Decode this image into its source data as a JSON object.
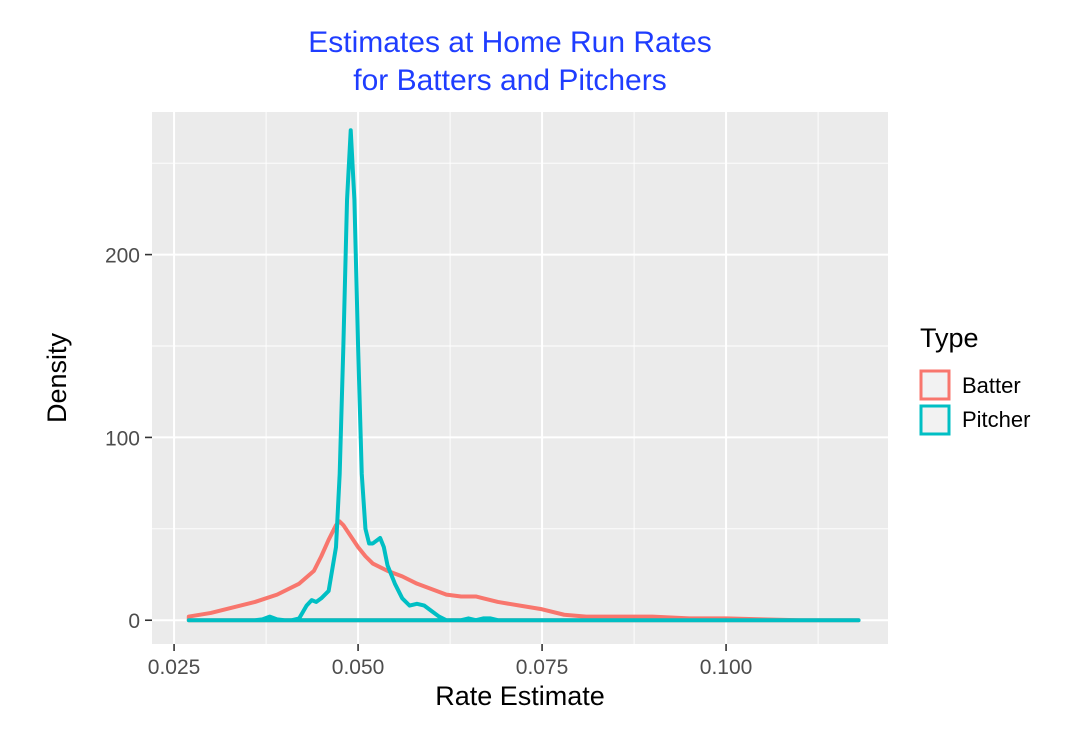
{
  "chart_data": {
    "type": "line",
    "title_lines": [
      "Estimates at Home Run Rates",
      "for Batters and Pitchers"
    ],
    "xlabel": "Rate Estimate",
    "ylabel": "Density",
    "xlim": [
      0.022,
      0.122
    ],
    "ylim": [
      -13,
      278
    ],
    "x_ticks": [
      0.025,
      0.05,
      0.075,
      0.1
    ],
    "x_tick_labels": [
      "0.025",
      "0.050",
      "0.075",
      "0.100"
    ],
    "y_ticks": [
      0,
      100,
      200
    ],
    "y_tick_labels": [
      "0",
      "100",
      "200"
    ],
    "grid": true,
    "legend": {
      "title": "Type",
      "position": "right",
      "entries": [
        "Batter",
        "Pitcher"
      ]
    },
    "series": [
      {
        "name": "Batter",
        "color": "#f8766d",
        "points": [
          [
            0.027,
            2
          ],
          [
            0.03,
            4
          ],
          [
            0.033,
            7
          ],
          [
            0.036,
            10
          ],
          [
            0.039,
            14
          ],
          [
            0.042,
            20
          ],
          [
            0.044,
            27
          ],
          [
            0.045,
            35
          ],
          [
            0.046,
            44
          ],
          [
            0.047,
            52
          ],
          [
            0.0475,
            54
          ],
          [
            0.048,
            52
          ],
          [
            0.049,
            46
          ],
          [
            0.05,
            40
          ],
          [
            0.051,
            35
          ],
          [
            0.052,
            31
          ],
          [
            0.054,
            27
          ],
          [
            0.056,
            24
          ],
          [
            0.058,
            20
          ],
          [
            0.06,
            17
          ],
          [
            0.062,
            14
          ],
          [
            0.064,
            13
          ],
          [
            0.066,
            13
          ],
          [
            0.067,
            12
          ],
          [
            0.069,
            10
          ],
          [
            0.072,
            8
          ],
          [
            0.075,
            6
          ],
          [
            0.078,
            3
          ],
          [
            0.081,
            2
          ],
          [
            0.085,
            2
          ],
          [
            0.088,
            2
          ],
          [
            0.09,
            2
          ],
          [
            0.095,
            1
          ],
          [
            0.1,
            1
          ],
          [
            0.105,
            0.5
          ],
          [
            0.11,
            0
          ],
          [
            0.118,
            0
          ]
        ]
      },
      {
        "name": "Pitcher",
        "color": "#00bfc4",
        "points": [
          [
            0.027,
            0
          ],
          [
            0.036,
            0
          ],
          [
            0.037,
            0.5
          ],
          [
            0.038,
            2
          ],
          [
            0.039,
            0.5
          ],
          [
            0.04,
            0
          ],
          [
            0.041,
            0
          ],
          [
            0.042,
            1
          ],
          [
            0.043,
            8
          ],
          [
            0.0437,
            11
          ],
          [
            0.0443,
            10
          ],
          [
            0.045,
            12
          ],
          [
            0.046,
            16
          ],
          [
            0.047,
            40
          ],
          [
            0.0475,
            80
          ],
          [
            0.048,
            150
          ],
          [
            0.0485,
            230
          ],
          [
            0.049,
            268
          ],
          [
            0.0495,
            230
          ],
          [
            0.05,
            150
          ],
          [
            0.0505,
            80
          ],
          [
            0.051,
            50
          ],
          [
            0.0515,
            42
          ],
          [
            0.052,
            42
          ],
          [
            0.053,
            45
          ],
          [
            0.0535,
            40
          ],
          [
            0.054,
            30
          ],
          [
            0.055,
            20
          ],
          [
            0.056,
            12
          ],
          [
            0.057,
            8
          ],
          [
            0.058,
            9
          ],
          [
            0.059,
            8
          ],
          [
            0.06,
            5
          ],
          [
            0.061,
            2
          ],
          [
            0.062,
            0
          ],
          [
            0.063,
            0
          ],
          [
            0.064,
            0
          ],
          [
            0.065,
            1
          ],
          [
            0.066,
            0
          ],
          [
            0.067,
            1
          ],
          [
            0.068,
            1
          ],
          [
            0.069,
            0
          ],
          [
            0.07,
            0
          ],
          [
            0.118,
            0
          ]
        ]
      }
    ]
  }
}
